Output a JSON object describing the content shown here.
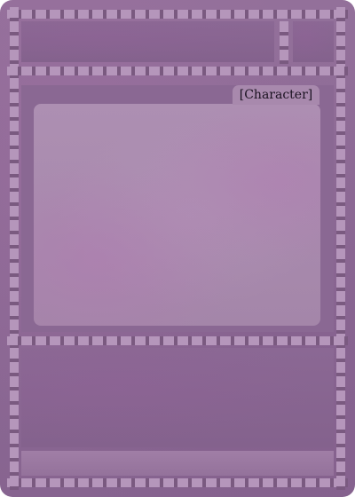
{
  "card": {
    "type_label": "[Character]",
    "colors": {
      "frame": "#8e6a92",
      "strip_hole": "#b596bb",
      "strip_band": "#7a5a80",
      "art": "#a889ad",
      "text": "#1a1220"
    }
  }
}
